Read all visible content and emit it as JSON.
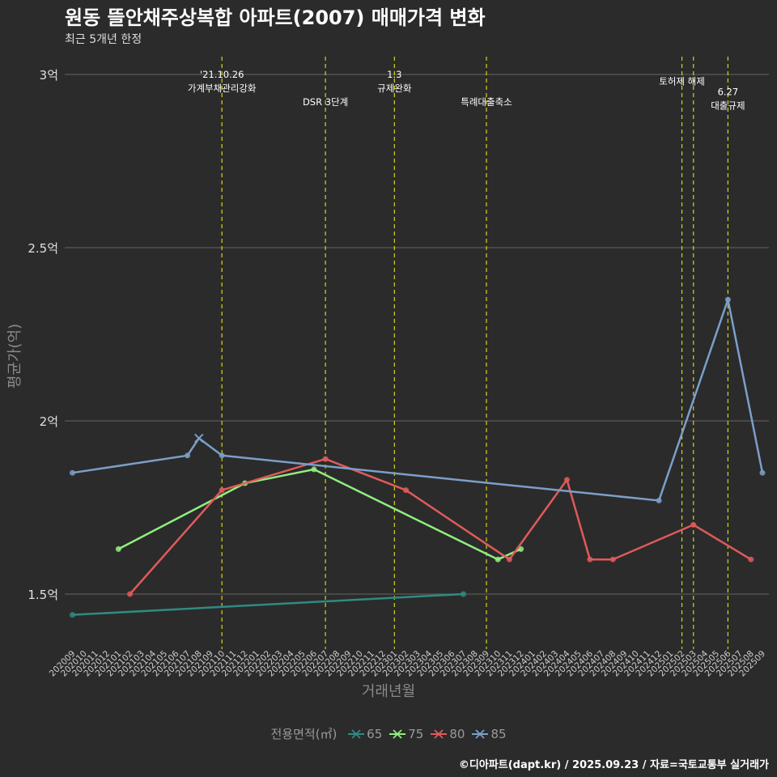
{
  "chart_data": {
    "type": "line",
    "title": "원동 뜰안채주상복합 아파트(2007) 매매가격 변화",
    "subtitle": "최근 5개년 한정",
    "xlabel": "거래년월",
    "ylabel": "평균가(억)",
    "caption": "©디아파트(dapt.kr) / 2025.09.23 / 자료=국토교통부 실거래가",
    "legend_title": "전용면적(㎡)",
    "legend_position": "bottom",
    "grid": true,
    "categories": [
      "202009",
      "202010",
      "202011",
      "202012",
      "202101",
      "202102",
      "202103",
      "202104",
      "202105",
      "202106",
      "202107",
      "202108",
      "202109",
      "202110",
      "202111",
      "202112",
      "202201",
      "202202",
      "202203",
      "202204",
      "202205",
      "202206",
      "202207",
      "202208",
      "202209",
      "202210",
      "202211",
      "202212",
      "202301",
      "202302",
      "202303",
      "202304",
      "202305",
      "202306",
      "202307",
      "202308",
      "202309",
      "202310",
      "202311",
      "202312",
      "202401",
      "202402",
      "202403",
      "202404",
      "202405",
      "202406",
      "202407",
      "202408",
      "202409",
      "202410",
      "202411",
      "202412",
      "202501",
      "202502",
      "202503",
      "202504",
      "202505",
      "202506",
      "202507",
      "202508",
      "202509"
    ],
    "ylim": [
      1.35,
      3.05
    ],
    "y_ticks": [
      {
        "value": 1.5,
        "label": "1.5억"
      },
      {
        "value": 2.0,
        "label": "2억"
      },
      {
        "value": 2.5,
        "label": "2.5억"
      },
      {
        "value": 3.0,
        "label": "3억"
      }
    ],
    "series": [
      {
        "name": "65",
        "color": "#2e8b82",
        "points": [
          [
            "202009",
            1.44
          ],
          [
            "202307",
            1.5
          ]
        ]
      },
      {
        "name": "75",
        "color": "#90ee7e",
        "points": [
          [
            "202101",
            1.63
          ],
          [
            "202112",
            1.82
          ],
          [
            "202206",
            1.86
          ],
          [
            "202310",
            1.6
          ],
          [
            "202312",
            1.63
          ]
        ]
      },
      {
        "name": "80",
        "color": "#e05a5a",
        "points": [
          [
            "202102",
            1.5
          ],
          [
            "202110",
            1.8
          ],
          [
            "202207",
            1.89
          ],
          [
            "202302",
            1.8
          ],
          [
            "202311",
            1.6
          ],
          [
            "202404",
            1.83
          ],
          [
            "202406",
            1.6
          ],
          [
            "202408",
            1.6
          ],
          [
            "202503",
            1.7
          ],
          [
            "202508",
            1.6
          ]
        ]
      },
      {
        "name": "85",
        "color": "#7b9fc9",
        "points": [
          [
            "202009",
            1.85
          ],
          [
            "202107",
            1.9
          ],
          [
            "202108",
            1.95
          ],
          [
            "202110",
            1.9
          ],
          [
            "202412",
            1.77
          ],
          [
            "202506",
            2.35
          ],
          [
            "202509",
            1.85
          ]
        ]
      }
    ],
    "cross_points": [
      {
        "series": "85",
        "x": "202108",
        "y": 1.95
      }
    ],
    "annotations": [
      {
        "x": "202110",
        "lines": [
          "'21.10.26",
          "가계부채관리강화"
        ],
        "y": 3.0
      },
      {
        "x": "202207",
        "lines": [
          "DSR 3단계"
        ],
        "y": 2.92
      },
      {
        "x": "202301",
        "lines": [
          "1.3",
          "규제완화"
        ],
        "y": 3.0
      },
      {
        "x": "202309",
        "lines": [
          "특례대출축소"
        ],
        "y": 2.92
      },
      {
        "x": "202502",
        "lines": [
          "토허제 해제"
        ],
        "y": 2.98
      },
      {
        "x": "202503",
        "lines": [],
        "y": 2.98
      },
      {
        "x": "202506",
        "lines": [
          "6.27",
          "대출규제"
        ],
        "y": 2.95
      }
    ]
  }
}
